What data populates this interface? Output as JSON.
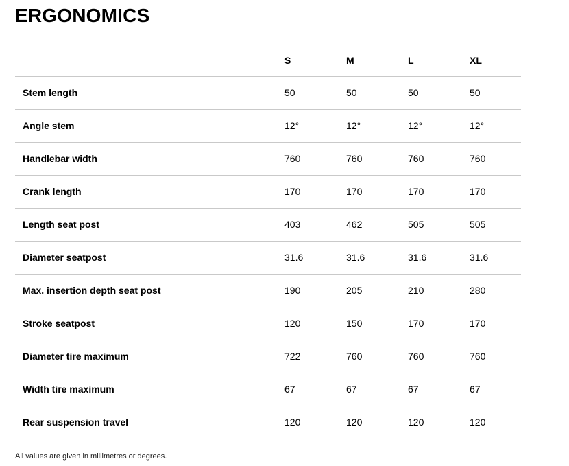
{
  "page": {
    "title": "ERGONOMICS",
    "footnote": "All values are given in millimetres or degrees."
  },
  "colors": {
    "divider": "#c9c9c9",
    "text": "#000000",
    "background": "#ffffff"
  },
  "table": {
    "columns": [
      "S",
      "M",
      "L",
      "XL"
    ],
    "rows": [
      {
        "label": "Stem length",
        "values": [
          "50",
          "50",
          "50",
          "50"
        ]
      },
      {
        "label": "Angle stem",
        "values": [
          "12°",
          "12°",
          "12°",
          "12°"
        ]
      },
      {
        "label": "Handlebar width",
        "values": [
          "760",
          "760",
          "760",
          "760"
        ]
      },
      {
        "label": "Crank length",
        "values": [
          "170",
          "170",
          "170",
          "170"
        ]
      },
      {
        "label": "Length seat post",
        "values": [
          "403",
          "462",
          "505",
          "505"
        ]
      },
      {
        "label": "Diameter seatpost",
        "values": [
          "31.6",
          "31.6",
          "31.6",
          "31.6"
        ]
      },
      {
        "label": "Max. insertion depth seat post",
        "values": [
          "190",
          "205",
          "210",
          "280"
        ]
      },
      {
        "label": "Stroke seatpost",
        "values": [
          "120",
          "150",
          "170",
          "170"
        ]
      },
      {
        "label": "Diameter tire maximum",
        "values": [
          "722",
          "760",
          "760",
          "760"
        ]
      },
      {
        "label": "Width tire maximum",
        "values": [
          "67",
          "67",
          "67",
          "67"
        ]
      },
      {
        "label": "Rear suspension travel",
        "values": [
          "120",
          "120",
          "120",
          "120"
        ]
      }
    ]
  }
}
